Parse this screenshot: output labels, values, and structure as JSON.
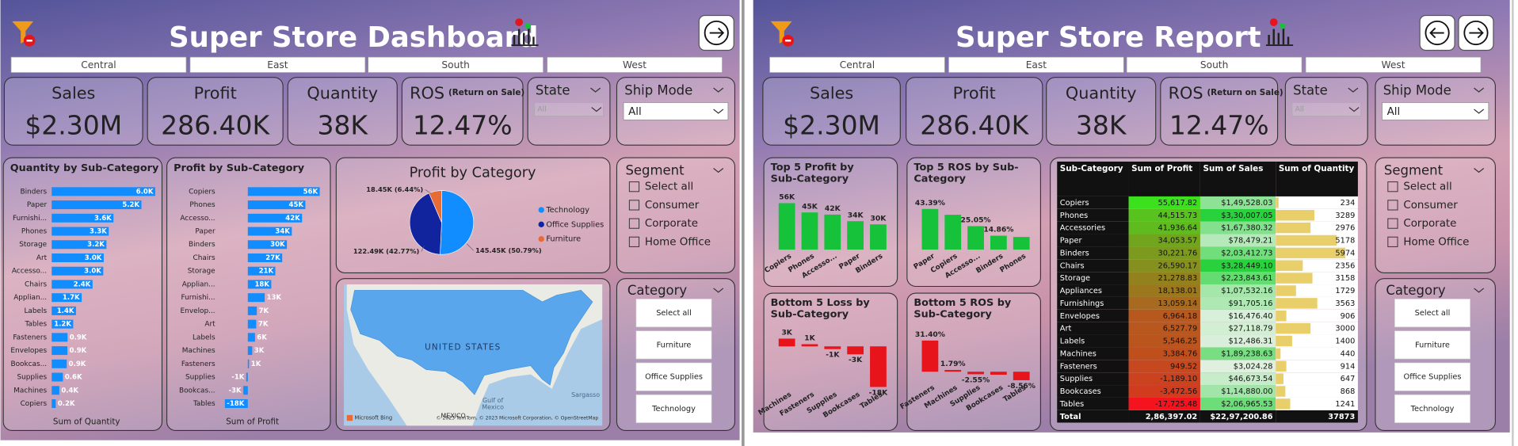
{
  "dashboard": {
    "title": "Super Store Dashboard",
    "regions": [
      "Central",
      "East",
      "South",
      "West"
    ],
    "kpis": [
      {
        "label": "Sales",
        "value": "$2.30M"
      },
      {
        "label": "Profit",
        "value": "286.40K"
      },
      {
        "label": "Quantity",
        "value": "38K"
      },
      {
        "label": "ROS",
        "note": "(Return on Sale)",
        "value": "12.47%"
      }
    ],
    "state": {
      "label": "State",
      "value": "All"
    },
    "ship_mode": {
      "label": "Ship Mode",
      "value": "All"
    },
    "segment": {
      "label": "Segment",
      "options": [
        "Select all",
        "Consumer",
        "Corporate",
        "Home Office"
      ]
    },
    "category": {
      "label": "Category",
      "options": [
        "Select all",
        "Furniture",
        "Office Supplies",
        "Technology"
      ]
    },
    "charts": [
      {
        "type": "bar",
        "title": "Quantity by Sub-Category",
        "x_label": "Sum of Quantity",
        "color": "#118dff",
        "categories": [
          "Binders",
          "Paper",
          "Furnishi...",
          "Phones",
          "Storage",
          "Art",
          "Accesso...",
          "Chairs",
          "Applian...",
          "Labels",
          "Tables",
          "Fasteners",
          "Envelopes",
          "Bookcas...",
          "Supplies",
          "Machines",
          "Copiers"
        ],
        "values": [
          5974,
          5178,
          3563,
          3289,
          3158,
          3000,
          2976,
          2356,
          1729,
          1400,
          1241,
          914,
          906,
          868,
          647,
          440,
          234
        ],
        "value_labels": [
          "6.0K",
          "5.2K",
          "3.6K",
          "3.3K",
          "3.2K",
          "3.0K",
          "3.0K",
          "2.4K",
          "1.7K",
          "1.4K",
          "1.2K",
          "0.9K",
          "0.9K",
          "0.9K",
          "0.6K",
          "0.4K",
          "0.2K"
        ]
      },
      {
        "type": "bar",
        "title": "Profit by Sub-Category",
        "x_label": "Sum of Profit",
        "color": "#118dff",
        "categories": [
          "Copiers",
          "Phones",
          "Accesso...",
          "Paper",
          "Binders",
          "Chairs",
          "Storage",
          "Applian...",
          "Furnishi...",
          "Envelop...",
          "Art",
          "Labels",
          "Machines",
          "Fasteners",
          "Supplies",
          "Bookcas...",
          "Tables"
        ],
        "values": [
          55617.82,
          44515.73,
          41936.64,
          34053.57,
          30221.76,
          26590.17,
          21278.83,
          18138.01,
          13059.14,
          6964.18,
          6527.79,
          5546.25,
          3384.76,
          949.52,
          -1189.1,
          -3472.56,
          -17725.48
        ],
        "value_labels": [
          "56K",
          "45K",
          "42K",
          "34K",
          "30K",
          "27K",
          "21K",
          "18K",
          "13K",
          "7K",
          "7K",
          "6K",
          "3K",
          "1K",
          "-1K",
          "-3K",
          "-18K"
        ]
      },
      {
        "type": "pie",
        "title": "Profit by Category",
        "categories": [
          "Technology",
          "Office Supplies",
          "Furniture"
        ],
        "values": [
          145450,
          122490,
          18450
        ],
        "value_labels": [
          "145.45K (50.79%)",
          "122.49K (42.77%)",
          "18.45K (6.44%)"
        ],
        "colors": [
          "#118dff",
          "#12239e",
          "#e66c37"
        ]
      }
    ],
    "map": {
      "labels": [
        "UNITED STATES",
        "MEXICO",
        "Gulf of Mexico",
        "Sargasso"
      ],
      "attribution": "Microsoft Bing",
      "copyright": "© 2023 TomTom, © 2023 Microsoft Corporation, © OpenStreetMap"
    }
  },
  "report": {
    "title": "Super Store Report",
    "regions": [
      "Central",
      "East",
      "South",
      "West"
    ],
    "kpis": [
      {
        "label": "Sales",
        "value": "$2.30M"
      },
      {
        "label": "Profit",
        "value": "286.40K"
      },
      {
        "label": "Quantity",
        "value": "38K"
      },
      {
        "label": "ROS",
        "note": "(Return on Sale)",
        "value": "12.47%"
      }
    ],
    "state": {
      "label": "State",
      "value": "All"
    },
    "ship_mode": {
      "label": "Ship Mode",
      "value": "All"
    },
    "segment": {
      "label": "Segment",
      "options": [
        "Select all",
        "Consumer",
        "Corporate",
        "Home Office"
      ]
    },
    "category": {
      "label": "Category",
      "options": [
        "Select all",
        "Furniture",
        "Office Supplies",
        "Technology"
      ]
    },
    "charts": [
      {
        "type": "bar",
        "title": "Top 5 Profit by Sub-Category",
        "color": "#16c23a",
        "categories": [
          "Copiers",
          "Phones",
          "Accesso...",
          "Paper",
          "Binders"
        ],
        "values": [
          55617.82,
          44515.73,
          41936.64,
          34053.57,
          30221.76
        ],
        "value_labels": [
          "56K",
          "45K",
          "42K",
          "34K",
          "30K"
        ]
      },
      {
        "type": "bar",
        "title": "Top 5 ROS by Sub-Category",
        "color": "#16c23a",
        "categories": [
          "Paper",
          "Copiers",
          "Accesso...",
          "Binders",
          "Phones"
        ],
        "values": [
          43.39,
          37.2,
          25.05,
          14.86,
          13.49
        ],
        "value_labels": [
          "43.39%",
          null,
          "25.05%",
          "14.86%",
          null
        ]
      },
      {
        "type": "bar",
        "title": "Bottom 5 Loss by Sub-Category",
        "color": "#e8141b",
        "categories": [
          "Machines",
          "Fasteners",
          "Supplies",
          "Bookcases",
          "Tables"
        ],
        "values": [
          3384.76,
          949.52,
          -1189.1,
          -3472.56,
          -17725.48
        ],
        "value_labels": [
          "3K",
          "1K",
          "-1K",
          "-3K",
          "-18K"
        ]
      },
      {
        "type": "bar",
        "title": "Bottom 5 ROS by Sub-Category",
        "color": "#e8141b",
        "categories": [
          "Fasteners",
          "Machines",
          "Supplies",
          "Bookcases",
          "Tables"
        ],
        "values": [
          31.4,
          1.79,
          -2.55,
          -3.02,
          -8.56
        ],
        "value_labels": [
          "31.40%",
          "1.79%",
          "-2.55%",
          null,
          "-8.56%"
        ]
      }
    ],
    "table": {
      "columns": [
        "Sub-Category",
        "Sum of Profit",
        "Sum of Sales",
        "Sum of Quantity"
      ],
      "rows": [
        [
          "Copiers",
          "55,617.82",
          "$1,49,528.03",
          234
        ],
        [
          "Phones",
          "44,515.73",
          "$3,30,007.05",
          3289
        ],
        [
          "Accessories",
          "41,936.64",
          "$1,67,380.32",
          2976
        ],
        [
          "Paper",
          "34,053.57",
          "$78,479.21",
          5178
        ],
        [
          "Binders",
          "30,221.76",
          "$2,03,412.73",
          5974
        ],
        [
          "Chairs",
          "26,590.17",
          "$3,28,449.10",
          2356
        ],
        [
          "Storage",
          "21,278.83",
          "$2,23,843.61",
          3158
        ],
        [
          "Appliances",
          "18,138.01",
          "$1,07,532.16",
          1729
        ],
        [
          "Furnishings",
          "13,059.14",
          "$91,705.16",
          3563
        ],
        [
          "Envelopes",
          "6,964.18",
          "$16,476.40",
          906
        ],
        [
          "Art",
          "6,527.79",
          "$27,118.79",
          3000
        ],
        [
          "Labels",
          "5,546.25",
          "$12,486.31",
          1400
        ],
        [
          "Machines",
          "3,384.76",
          "$1,89,238.63",
          440
        ],
        [
          "Fasteners",
          "949.52",
          "$3,024.28",
          914
        ],
        [
          "Supplies",
          "-1,189.10",
          "$46,673.54",
          647
        ],
        [
          "Bookcases",
          "-3,472.56",
          "$1,14,880.00",
          868
        ],
        [
          "Tables",
          "-17,725.48",
          "$2,06,965.53",
          1241
        ]
      ],
      "total": [
        "Total",
        "2,86,397.02",
        "$22,97,200.86",
        37873
      ]
    }
  }
}
